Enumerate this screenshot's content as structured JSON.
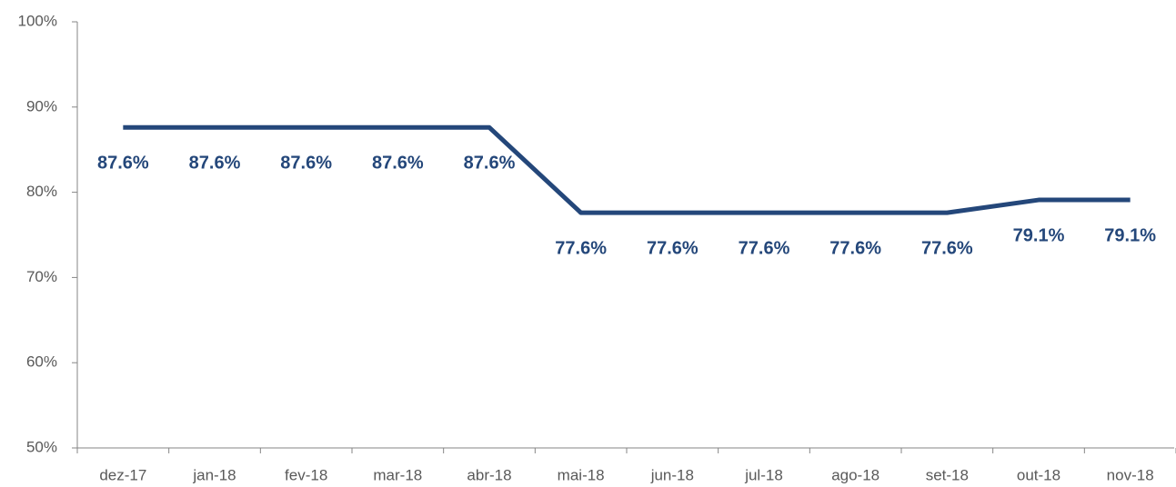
{
  "chart_data": {
    "type": "line",
    "categories": [
      "dez-17",
      "jan-18",
      "fev-18",
      "mar-18",
      "abr-18",
      "mai-18",
      "jun-18",
      "jul-18",
      "ago-18",
      "set-18",
      "out-18",
      "nov-18"
    ],
    "values": [
      87.6,
      87.6,
      87.6,
      87.6,
      87.6,
      77.6,
      77.6,
      77.6,
      77.6,
      77.6,
      79.1,
      79.1
    ],
    "value_labels": [
      "87.6%",
      "87.6%",
      "87.6%",
      "87.6%",
      "87.6%",
      "77.6%",
      "77.6%",
      "77.6%",
      "77.6%",
      "77.6%",
      "79.1%",
      "79.1%"
    ],
    "color": "#24477a",
    "ylim": [
      50,
      100
    ],
    "yticks": [
      {
        "value": 50,
        "label": "50%"
      },
      {
        "value": 60,
        "label": "60%"
      },
      {
        "value": 70,
        "label": "70%"
      },
      {
        "value": 80,
        "label": "80%"
      },
      {
        "value": 90,
        "label": "90%"
      },
      {
        "value": 100,
        "label": "100%"
      }
    ],
    "grid": false
  }
}
